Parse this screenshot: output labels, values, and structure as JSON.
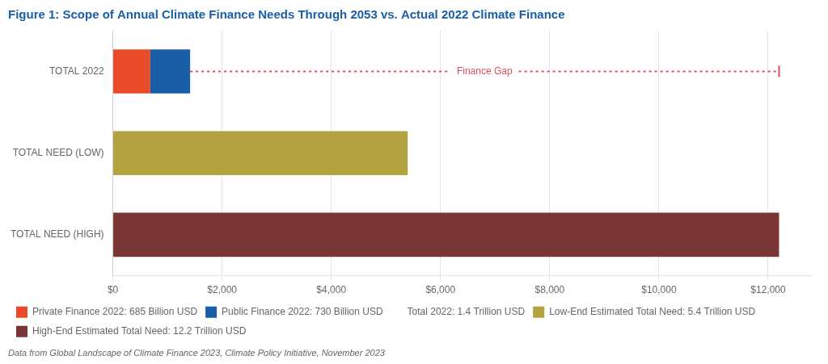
{
  "chart_data": {
    "type": "bar",
    "orientation": "horizontal",
    "stacked": true,
    "title": "Figure 1: Scope of Annual Climate Finance Needs Through 2053 vs. Actual 2022 Climate Finance",
    "source": "Data from Global Landscape of Climate Finance 2023, Climate Policy Initiative, November 2023",
    "categories": [
      "TOTAL 2022",
      "TOTAL NEED (LOW)",
      "TOTAL NEED (HIGH)"
    ],
    "series": [
      {
        "name": "Private Finance 2022: 685 Billion USD",
        "color": "#E84B2A",
        "values": [
          685,
          null,
          null
        ]
      },
      {
        "name": "Public Finance 2022: 730 Billion USD",
        "color": "#1A5EA8",
        "values": [
          730,
          null,
          null
        ]
      },
      {
        "name": "Low-End Estimated Total Need: 5.4 Trillion USD",
        "color": "#B3A240",
        "values": [
          null,
          5400,
          null
        ]
      },
      {
        "name": "High-End Estimated Total Need: 12.2 Trillion USD",
        "color": "#7A3535",
        "values": [
          null,
          null,
          12200
        ]
      }
    ],
    "annotations": [
      {
        "text": "Total 2022: 1.4 Trillion USD",
        "category": "TOTAL 2022"
      },
      {
        "text": "Finance Gap",
        "category": "TOTAL 2022",
        "x": [
          1415,
          12200
        ],
        "color": "#D94F5C",
        "line_style": "dashed"
      }
    ],
    "xlim": [
      0,
      12800
    ],
    "xticks": [
      {
        "value": 0,
        "label": "$0"
      },
      {
        "value": 2000,
        "label": "$2,000"
      },
      {
        "value": 4000,
        "label": "$4,000"
      },
      {
        "value": 6000,
        "label": "$6,000"
      },
      {
        "value": 8000,
        "label": "$8,000"
      },
      {
        "value": 10000,
        "label": "$10,000"
      },
      {
        "value": 12000,
        "label": "$12,000"
      }
    ],
    "grid": true,
    "legend": "bottom"
  }
}
